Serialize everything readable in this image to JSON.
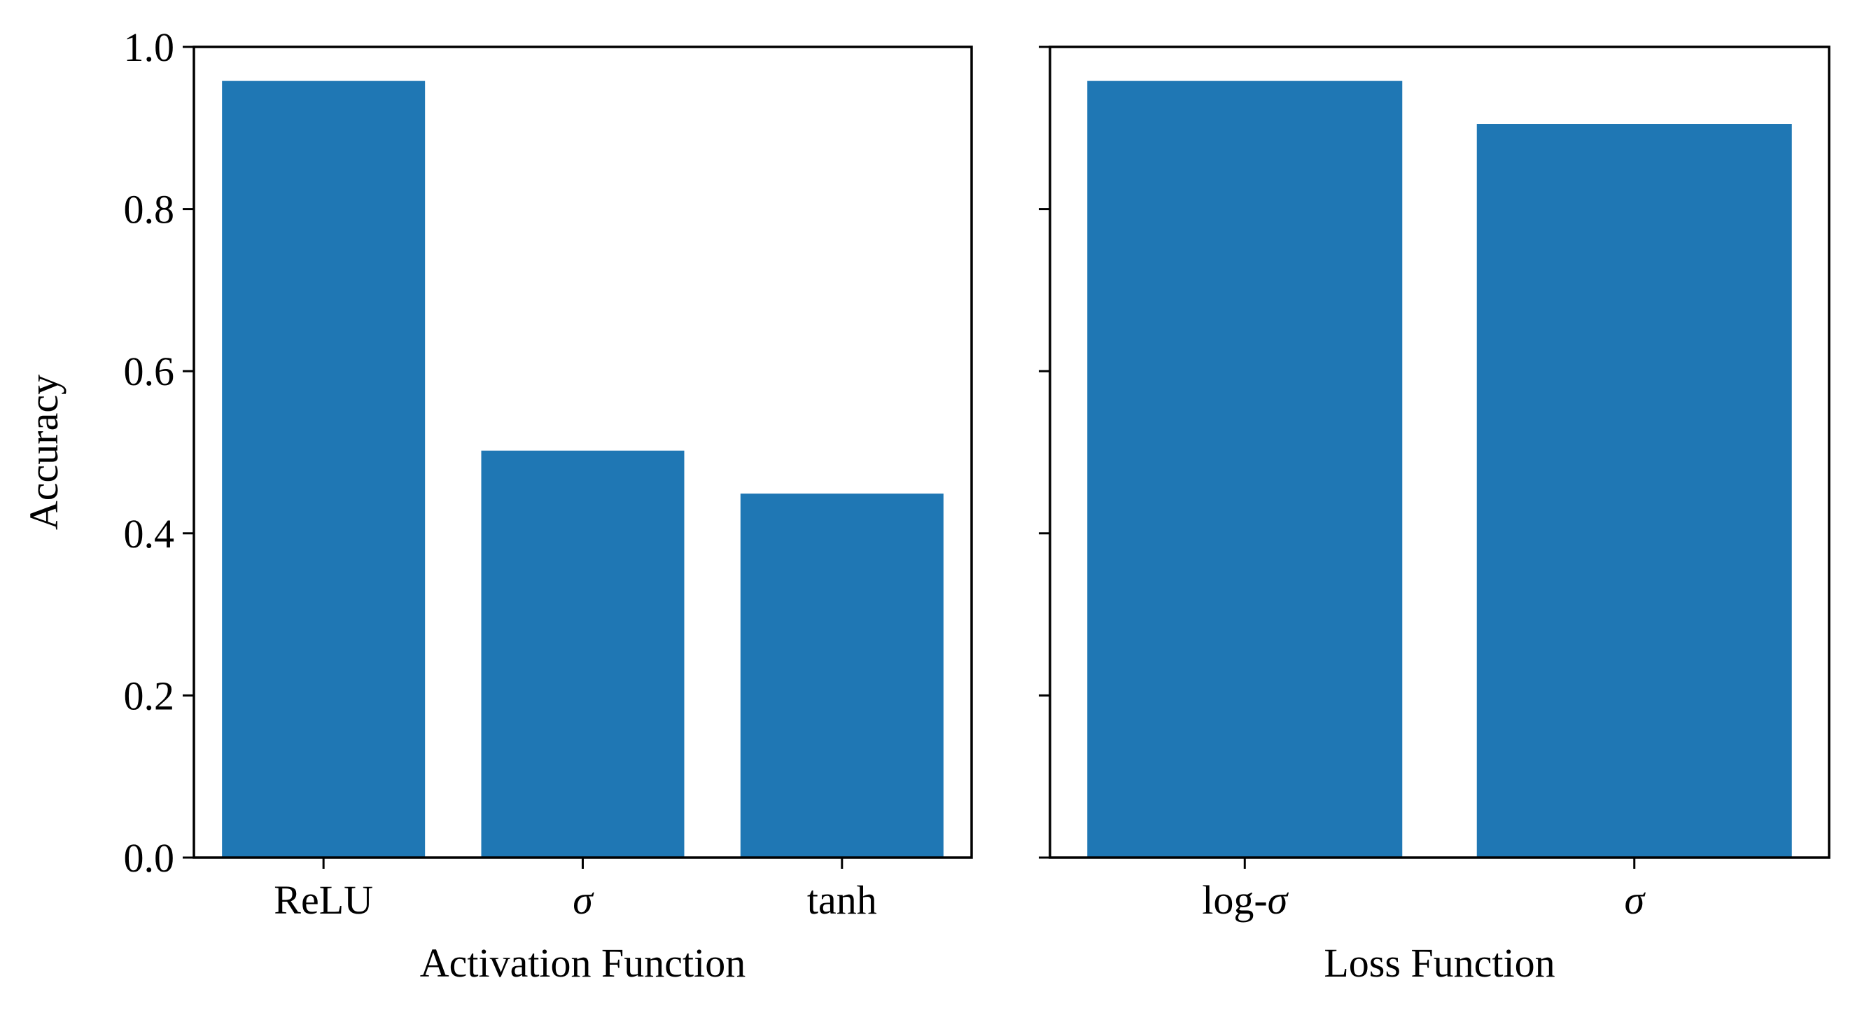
{
  "chart_data": [
    {
      "type": "bar",
      "categories": [
        "ReLU",
        "σ",
        "tanh"
      ],
      "values": [
        0.958,
        0.502,
        0.449
      ],
      "title": "",
      "xlabel": "Activation Function",
      "ylabel": "Accuracy",
      "ylim": [
        0,
        1.0
      ],
      "yticks": [
        "0.0",
        "0.2",
        "0.4",
        "0.6",
        "0.8",
        "1.0"
      ],
      "bar_color": "#1f77b4",
      "grid": false
    },
    {
      "type": "bar",
      "categories": [
        "log-σ",
        "σ"
      ],
      "values": [
        0.958,
        0.905
      ],
      "title": "",
      "xlabel": "Loss Function",
      "ylabel": "",
      "ylim": [
        0,
        1.0
      ],
      "yticks": [],
      "shared_y": true,
      "bar_color": "#1f77b4",
      "grid": false
    }
  ]
}
